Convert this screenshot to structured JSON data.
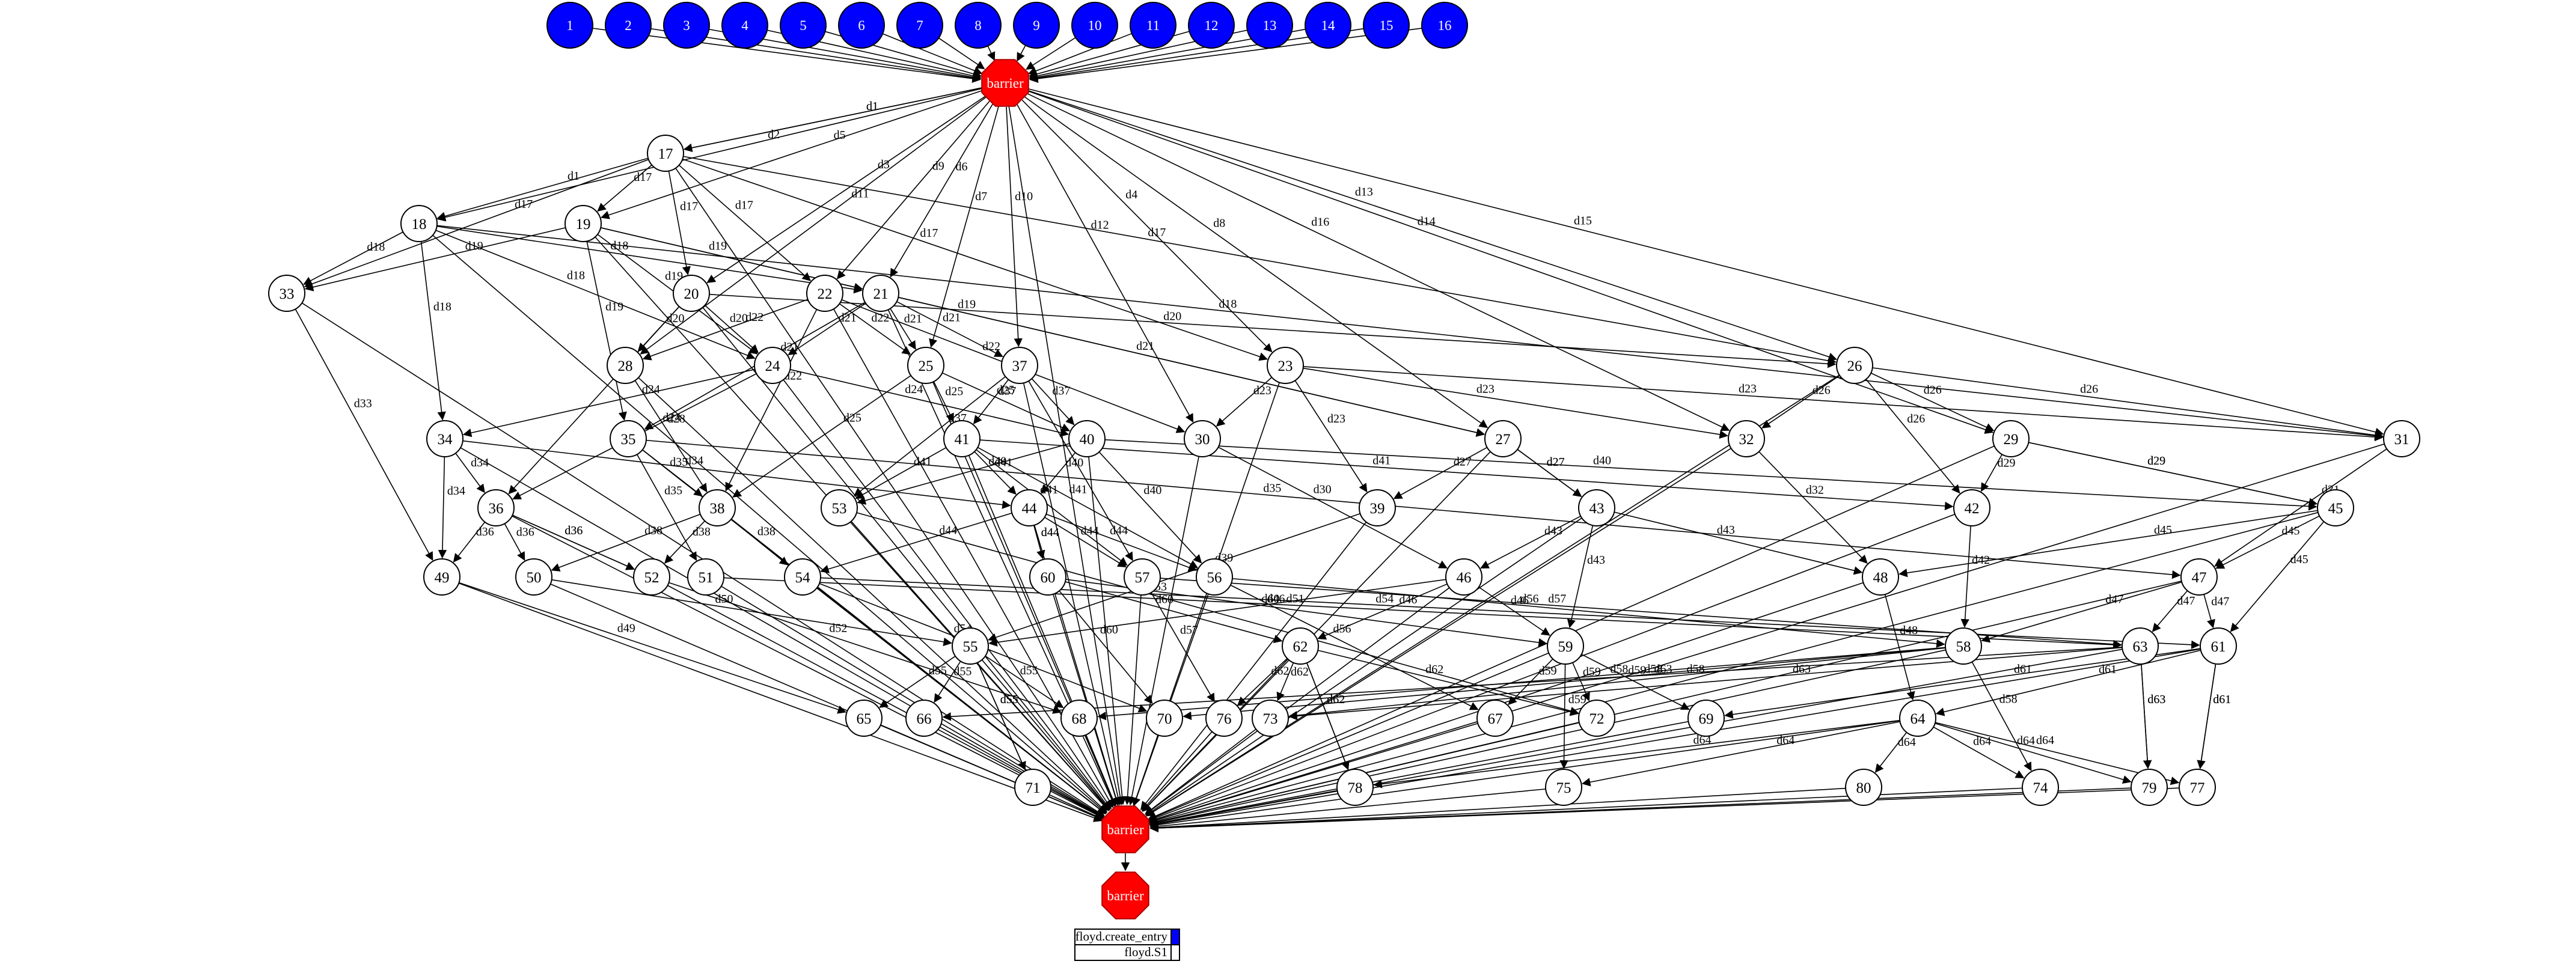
{
  "entries": [
    "1",
    "2",
    "3",
    "4",
    "5",
    "6",
    "7",
    "8",
    "9",
    "10",
    "11",
    "12",
    "13",
    "14",
    "15",
    "16"
  ],
  "barriers": [
    "barrier",
    "barrier",
    "barrier"
  ],
  "nodes": [
    "17",
    "18",
    "19",
    "20",
    "21",
    "22",
    "23",
    "24",
    "25",
    "26",
    "27",
    "28",
    "29",
    "30",
    "31",
    "32",
    "33",
    "34",
    "35",
    "36",
    "37",
    "38",
    "39",
    "40",
    "41",
    "42",
    "43",
    "44",
    "45",
    "46",
    "47",
    "48",
    "49",
    "50",
    "51",
    "52",
    "53",
    "54",
    "55",
    "56",
    "57",
    "58",
    "59",
    "60",
    "61",
    "62",
    "63",
    "64",
    "65",
    "66",
    "67",
    "68",
    "69",
    "70",
    "71",
    "72",
    "73",
    "74",
    "75",
    "76",
    "77",
    "78",
    "79",
    "80"
  ],
  "edges": [
    [
      "B0",
      "17",
      "d1"
    ],
    [
      "B0",
      "17",
      "d1"
    ],
    [
      "B0",
      "18",
      "d2"
    ],
    [
      "B0",
      "19",
      "d5"
    ],
    [
      "B0",
      "20",
      "d3"
    ],
    [
      "B0",
      "21",
      "d6"
    ],
    [
      "B0",
      "22",
      "d9"
    ],
    [
      "B0",
      "23",
      "d4"
    ],
    [
      "B0",
      "26",
      "d13"
    ],
    [
      "B0",
      "29",
      "d14"
    ],
    [
      "B0",
      "30",
      "d12"
    ],
    [
      "B0",
      "31",
      "d15"
    ],
    [
      "B0",
      "32",
      "d16"
    ],
    [
      "B0",
      "37",
      "d10"
    ],
    [
      "B0",
      "25",
      "d7"
    ],
    [
      "B0",
      "27",
      "d8"
    ],
    [
      "B0",
      "28",
      "d11"
    ],
    [
      "17",
      "18",
      "d1"
    ],
    [
      "17",
      "19",
      "d17"
    ],
    [
      "17",
      "20",
      "d17"
    ],
    [
      "17",
      "22",
      "d17"
    ],
    [
      "17",
      "23",
      "d17"
    ],
    [
      "17",
      "26",
      "d17"
    ],
    [
      "17",
      "33",
      "d17"
    ],
    [
      "18",
      "33",
      "d18"
    ],
    [
      "18",
      "34",
      "d18"
    ],
    [
      "18",
      "21",
      "d18"
    ],
    [
      "18",
      "24",
      "d18"
    ],
    [
      "18",
      "31",
      "d18"
    ],
    [
      "19",
      "33",
      "d19"
    ],
    [
      "19",
      "35",
      "d19"
    ],
    [
      "19",
      "24",
      "d19"
    ],
    [
      "19",
      "21",
      "d19"
    ],
    [
      "19",
      "27",
      "d19"
    ],
    [
      "20",
      "28",
      "d20"
    ],
    [
      "20",
      "36",
      "d20"
    ],
    [
      "20",
      "24",
      "d20"
    ],
    [
      "20",
      "26",
      "d20"
    ],
    [
      "21",
      "25",
      "d21"
    ],
    [
      "21",
      "37",
      "d21"
    ],
    [
      "21",
      "24",
      "d21"
    ],
    [
      "21",
      "35",
      "d21"
    ],
    [
      "21",
      "27",
      "d21"
    ],
    [
      "22",
      "25",
      "d22"
    ],
    [
      "22",
      "38",
      "d22"
    ],
    [
      "22",
      "28",
      "d22"
    ],
    [
      "22",
      "30",
      "d22"
    ],
    [
      "23",
      "30",
      "d23"
    ],
    [
      "23",
      "32",
      "d23"
    ],
    [
      "23",
      "39",
      "d23"
    ],
    [
      "23",
      "31",
      "d23"
    ],
    [
      "24",
      "34",
      "d24"
    ],
    [
      "24",
      "40",
      "d24"
    ],
    [
      "24",
      "36",
      "d24"
    ],
    [
      "25",
      "41",
      "d25"
    ],
    [
      "25",
      "38",
      "d25"
    ],
    [
      "25",
      "40",
      "d25"
    ],
    [
      "26",
      "32",
      "d26"
    ],
    [
      "26",
      "42",
      "d26"
    ],
    [
      "26",
      "29",
      "d26"
    ],
    [
      "26",
      "31",
      "d26"
    ],
    [
      "27",
      "43",
      "d27"
    ],
    [
      "27",
      "39",
      "d27"
    ],
    [
      "27",
      "43",
      "d27"
    ],
    [
      "28",
      "38",
      "d28"
    ],
    [
      "29",
      "42",
      "d29"
    ],
    [
      "29",
      "45",
      "d29"
    ],
    [
      "29",
      "45",
      "d29"
    ],
    [
      "30",
      "46",
      "d30"
    ],
    [
      "31",
      "47",
      "d31"
    ],
    [
      "32",
      "48",
      "d32"
    ],
    [
      "33",
      "49",
      "d33"
    ],
    [
      "34",
      "36",
      "d34"
    ],
    [
      "34",
      "49",
      "d34"
    ],
    [
      "34",
      "44",
      "d34"
    ],
    [
      "35",
      "51",
      "d35"
    ],
    [
      "35",
      "38",
      "d35"
    ],
    [
      "35",
      "47",
      "d35"
    ],
    [
      "36",
      "50",
      "d36"
    ],
    [
      "36",
      "52",
      "d36"
    ],
    [
      "36",
      "49",
      "d36"
    ],
    [
      "36",
      "52",
      "d36"
    ],
    [
      "37",
      "41",
      "d37"
    ],
    [
      "37",
      "40",
      "d37"
    ],
    [
      "37",
      "53",
      "d37"
    ],
    [
      "37",
      "57",
      "d37"
    ],
    [
      "38",
      "52",
      "d38"
    ],
    [
      "38",
      "54",
      "d38"
    ],
    [
      "38",
      "50",
      "d38"
    ],
    [
      "39",
      "55",
      "d39"
    ],
    [
      "40",
      "53",
      "d40"
    ],
    [
      "40",
      "56",
      "d40"
    ],
    [
      "40",
      "45",
      "d40"
    ],
    [
      "40",
      "44",
      "d40"
    ],
    [
      "41",
      "53",
      "d41"
    ],
    [
      "41",
      "44",
      "d41"
    ],
    [
      "41",
      "57",
      "d41"
    ],
    [
      "41",
      "42",
      "d41"
    ],
    [
      "41",
      "56",
      "d41"
    ],
    [
      "42",
      "58",
      "d42"
    ],
    [
      "43",
      "46",
      "d43"
    ],
    [
      "43",
      "59",
      "d43"
    ],
    [
      "43",
      "48",
      "d43"
    ],
    [
      "44",
      "60",
      "d44"
    ],
    [
      "44",
      "57",
      "d44"
    ],
    [
      "44",
      "54",
      "d44"
    ],
    [
      "44",
      "56",
      "d44"
    ],
    [
      "44",
      "60",
      "d44"
    ],
    [
      "45",
      "47",
      "d45"
    ],
    [
      "45",
      "48",
      "d45"
    ],
    [
      "45",
      "61",
      "d45"
    ],
    [
      "46",
      "62",
      "d46"
    ],
    [
      "46",
      "59",
      "d46"
    ],
    [
      "46",
      "55",
      "d46"
    ],
    [
      "47",
      "63",
      "d47"
    ],
    [
      "47",
      "61",
      "d47"
    ],
    [
      "47",
      "58",
      "d47"
    ],
    [
      "48",
      "64",
      "d48"
    ],
    [
      "49",
      "65",
      "d49"
    ],
    [
      "50",
      "55",
      "d50"
    ],
    [
      "51",
      "63",
      "d51"
    ],
    [
      "52",
      "68",
      "d52"
    ],
    [
      "53",
      "72",
      "d53"
    ],
    [
      "54",
      "70",
      "d54"
    ],
    [
      "54",
      "61",
      "d54"
    ],
    [
      "55",
      "65",
      "d55"
    ],
    [
      "55",
      "66",
      "d55"
    ],
    [
      "55",
      "68",
      "d55"
    ],
    [
      "55",
      "71",
      "d55"
    ],
    [
      "55",
      "71",
      "d55"
    ],
    [
      "56",
      "58",
      "d56"
    ],
    [
      "56",
      "67",
      "d56"
    ],
    [
      "57",
      "76",
      "d57"
    ],
    [
      "57",
      "63",
      "d57"
    ],
    [
      "58",
      "74",
      "d58"
    ],
    [
      "58",
      "73",
      "d58"
    ],
    [
      "58",
      "70",
      "d58"
    ],
    [
      "58",
      "68",
      "d58"
    ],
    [
      "59",
      "67",
      "d59"
    ],
    [
      "59",
      "72",
      "d59"
    ],
    [
      "59",
      "69",
      "d59"
    ],
    [
      "59",
      "75",
      "d59"
    ],
    [
      "60",
      "62",
      "d60"
    ],
    [
      "60",
      "70",
      "d60"
    ],
    [
      "60",
      "59",
      "d60"
    ],
    [
      "61",
      "64",
      "d61"
    ],
    [
      "61",
      "69",
      "d61"
    ],
    [
      "61",
      "77",
      "d61"
    ],
    [
      "61",
      "77",
      "d61"
    ],
    [
      "62",
      "76",
      "d62"
    ],
    [
      "62",
      "73",
      "d62"
    ],
    [
      "62",
      "78",
      "d62"
    ],
    [
      "62",
      "72",
      "d62"
    ],
    [
      "62",
      "78",
      "d62"
    ],
    [
      "63",
      "79",
      "d63"
    ],
    [
      "63",
      "73",
      "d63"
    ],
    [
      "63",
      "79",
      "d63"
    ],
    [
      "63",
      "66",
      "d63"
    ],
    [
      "64",
      "80",
      "d64"
    ],
    [
      "64",
      "75",
      "d64"
    ],
    [
      "64",
      "74",
      "d64"
    ],
    [
      "64",
      "78",
      "d64"
    ],
    [
      "64",
      "79",
      "d64"
    ],
    [
      "64",
      "77",
      "d64"
    ]
  ],
  "legend": {
    "rows": [
      "floyd.create_entry",
      "floyd.S1"
    ],
    "colors": [
      "#0000ff",
      "#ffffff"
    ]
  },
  "colors": {
    "entry": "#0000ff",
    "barrier": "#ff0000",
    "node": "#ffffff"
  }
}
